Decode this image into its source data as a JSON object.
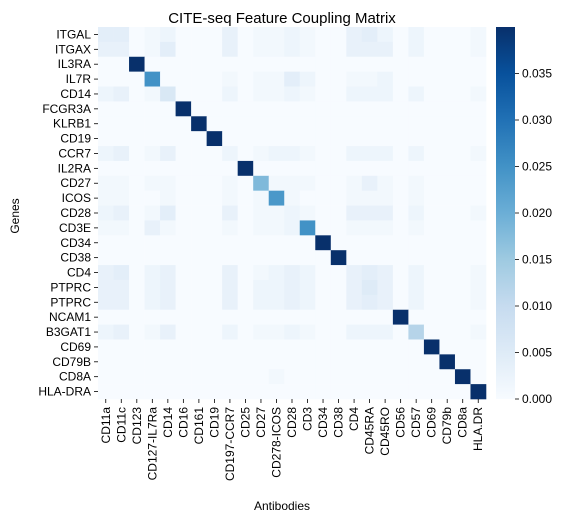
{
  "chart_data": {
    "type": "heatmap",
    "title": "CITE-seq Feature Coupling Matrix",
    "xlabel": "Antibodies",
    "ylabel": "Genes",
    "columns": [
      "CD11a",
      "CD11c",
      "CD123",
      "CD127-IL7Ra",
      "CD14",
      "CD16",
      "CD161",
      "CD19",
      "CD197-CCR7",
      "CD25",
      "CD27",
      "CD278-ICOS",
      "CD28",
      "CD3",
      "CD34",
      "CD38",
      "CD4",
      "CD45RA",
      "CD45RO",
      "CD56",
      "CD57",
      "CD69",
      "CD79b",
      "CD8a",
      "HLA.DR"
    ],
    "rows": [
      "ITGAL",
      "ITGAX",
      "IL3RA",
      "IL7R",
      "CD14",
      "FCGR3A",
      "KLRB1",
      "CD19",
      "CCR7",
      "IL2RA",
      "CD27",
      "ICOS",
      "CD28",
      "CD3E",
      "CD34",
      "CD38",
      "CD4",
      "PTPRC",
      "PTPRC",
      "NCAM1",
      "B3GAT1",
      "CD69",
      "CD79B",
      "CD8A",
      "HLA-DRA"
    ],
    "values": [
      [
        0.004,
        0.004,
        0,
        0.001,
        0.002,
        0,
        0,
        0,
        0.003,
        0,
        0.001,
        0.001,
        0.002,
        0.001,
        0,
        0,
        0.003,
        0.004,
        0.002,
        0,
        0.002,
        0,
        0,
        0,
        0.001
      ],
      [
        0.003,
        0.003,
        0,
        0.001,
        0.004,
        0,
        0,
        0,
        0.003,
        0,
        0.001,
        0.001,
        0.002,
        0.001,
        0,
        0,
        0.003,
        0.003,
        0.003,
        0,
        0.002,
        0,
        0,
        0,
        0.001
      ],
      [
        0,
        0,
        0.04,
        0,
        0,
        0,
        0,
        0,
        0,
        0,
        0,
        0,
        0,
        0,
        0,
        0,
        0,
        0,
        0,
        0,
        0,
        0,
        0,
        0,
        0
      ],
      [
        0,
        0,
        0,
        0.025,
        0,
        0,
        0,
        0,
        0.001,
        0,
        0.001,
        0.001,
        0.004,
        0.002,
        0,
        0,
        0.001,
        0.001,
        0.002,
        0,
        0,
        0,
        0,
        0,
        0
      ],
      [
        0.002,
        0.003,
        0,
        0.001,
        0.006,
        0,
        0,
        0,
        0.002,
        0,
        0.001,
        0.001,
        0.002,
        0.001,
        0,
        0,
        0.002,
        0.002,
        0.002,
        0,
        0.002,
        0,
        0,
        0,
        0.001
      ],
      [
        0,
        0,
        0,
        0,
        0,
        0.04,
        0,
        0,
        0,
        0,
        0,
        0,
        0,
        0,
        0,
        0,
        0,
        0,
        0,
        0,
        0,
        0,
        0,
        0,
        0
      ],
      [
        0,
        0,
        0,
        0,
        0,
        0,
        0.04,
        0,
        0,
        0,
        0,
        0,
        0,
        0,
        0,
        0,
        0,
        0,
        0,
        0,
        0,
        0,
        0,
        0,
        0
      ],
      [
        0,
        0,
        0,
        0,
        0,
        0,
        0,
        0.04,
        0,
        0,
        0,
        0,
        0,
        0,
        0,
        0,
        0,
        0,
        0,
        0,
        0,
        0,
        0,
        0,
        0
      ],
      [
        0.002,
        0.003,
        0,
        0.001,
        0.003,
        0,
        0,
        0,
        0.002,
        0,
        0.001,
        0.002,
        0.002,
        0.001,
        0,
        0,
        0.002,
        0.002,
        0.002,
        0,
        0.002,
        0,
        0,
        0,
        0.001
      ],
      [
        0,
        0,
        0,
        0,
        0,
        0,
        0,
        0,
        0,
        0.04,
        0,
        0,
        0,
        0,
        0,
        0,
        0,
        0,
        0,
        0,
        0,
        0,
        0,
        0,
        0
      ],
      [
        0.001,
        0.001,
        0,
        0.001,
        0.001,
        0,
        0,
        0,
        0.001,
        0,
        0.018,
        0.001,
        0.001,
        0.001,
        0,
        0,
        0.001,
        0.003,
        0.001,
        0,
        0.001,
        0,
        0,
        0,
        0
      ],
      [
        0.001,
        0.001,
        0,
        0,
        0.001,
        0,
        0,
        0,
        0.001,
        0,
        0.001,
        0.024,
        0.001,
        0,
        0,
        0,
        0.001,
        0.001,
        0.001,
        0,
        0.001,
        0,
        0,
        0,
        0
      ],
      [
        0.002,
        0.003,
        0,
        0.001,
        0.004,
        0,
        0,
        0,
        0.003,
        0,
        0.001,
        0.001,
        0.002,
        0.001,
        0,
        0,
        0.003,
        0.003,
        0.003,
        0,
        0.002,
        0,
        0,
        0,
        0.001
      ],
      [
        0.001,
        0.001,
        0,
        0.003,
        0.001,
        0,
        0,
        0,
        0.001,
        0,
        0.001,
        0.001,
        0.002,
        0.025,
        0,
        0,
        0.001,
        0.001,
        0.001,
        0,
        0.001,
        0,
        0,
        0,
        0
      ],
      [
        0,
        0,
        0,
        0,
        0,
        0,
        0,
        0,
        0,
        0,
        0,
        0,
        0,
        0,
        0.04,
        0,
        0,
        0,
        0,
        0,
        0,
        0,
        0,
        0,
        0
      ],
      [
        0,
        0,
        0,
        0,
        0,
        0,
        0,
        0,
        0,
        0,
        0,
        0,
        0,
        0,
        0,
        0.04,
        0,
        0,
        0,
        0,
        0,
        0,
        0,
        0,
        0
      ],
      [
        0.003,
        0.004,
        0,
        0.002,
        0.003,
        0,
        0,
        0,
        0.003,
        0,
        0.001,
        0.002,
        0.003,
        0.002,
        0,
        0,
        0.003,
        0.004,
        0.003,
        0,
        0.002,
        0,
        0,
        0,
        0.001
      ],
      [
        0.003,
        0.003,
        0,
        0.002,
        0.003,
        0,
        0,
        0,
        0.003,
        0,
        0.002,
        0.002,
        0.003,
        0.002,
        0,
        0,
        0.003,
        0.005,
        0.003,
        0,
        0.002,
        0,
        0,
        0,
        0.001
      ],
      [
        0.003,
        0.003,
        0,
        0.002,
        0.003,
        0,
        0,
        0,
        0.003,
        0,
        0.002,
        0.002,
        0.003,
        0.002,
        0,
        0,
        0.003,
        0.004,
        0.003,
        0,
        0.002,
        0,
        0,
        0,
        0.001
      ],
      [
        0,
        0,
        0,
        0,
        0,
        0,
        0,
        0,
        0,
        0,
        0,
        0,
        0,
        0,
        0,
        0,
        0,
        0,
        0,
        0.04,
        0,
        0,
        0,
        0,
        0
      ],
      [
        0.002,
        0.003,
        0,
        0.001,
        0.003,
        0,
        0,
        0,
        0.002,
        0,
        0.001,
        0.001,
        0.002,
        0.001,
        0,
        0,
        0.002,
        0.002,
        0.002,
        0,
        0.012,
        0,
        0,
        0,
        0.001
      ],
      [
        0,
        0,
        0,
        0,
        0,
        0,
        0,
        0,
        0,
        0,
        0,
        0,
        0,
        0,
        0,
        0,
        0,
        0,
        0,
        0,
        0,
        0.04,
        0,
        0,
        0
      ],
      [
        0,
        0,
        0,
        0,
        0,
        0,
        0,
        0,
        0,
        0,
        0,
        0,
        0,
        0,
        0,
        0,
        0,
        0,
        0,
        0,
        0,
        0,
        0.04,
        0,
        0
      ],
      [
        0,
        0,
        0,
        0,
        0,
        0,
        0,
        0,
        0,
        0,
        0,
        0.001,
        0,
        0,
        0,
        0,
        0,
        0,
        0,
        0,
        0,
        0,
        0,
        0.04,
        0
      ],
      [
        0,
        0,
        0,
        0,
        0,
        0,
        0,
        0,
        0,
        0,
        0,
        0,
        0,
        0,
        0,
        0,
        0,
        0,
        0,
        0,
        0,
        0,
        0,
        0,
        0.04
      ]
    ],
    "colorbar": {
      "ticks": [
        "0.000",
        "0.005",
        "0.010",
        "0.015",
        "0.020",
        "0.025",
        "0.030",
        "0.035"
      ],
      "tick_values": [
        0,
        0.005,
        0.01,
        0.015,
        0.02,
        0.025,
        0.03,
        0.035
      ],
      "range": [
        0,
        0.04
      ],
      "colormap": "Blues",
      "color_low": "#f7fbff",
      "color_high": "#08306b"
    },
    "grid": false,
    "legend": "right"
  }
}
